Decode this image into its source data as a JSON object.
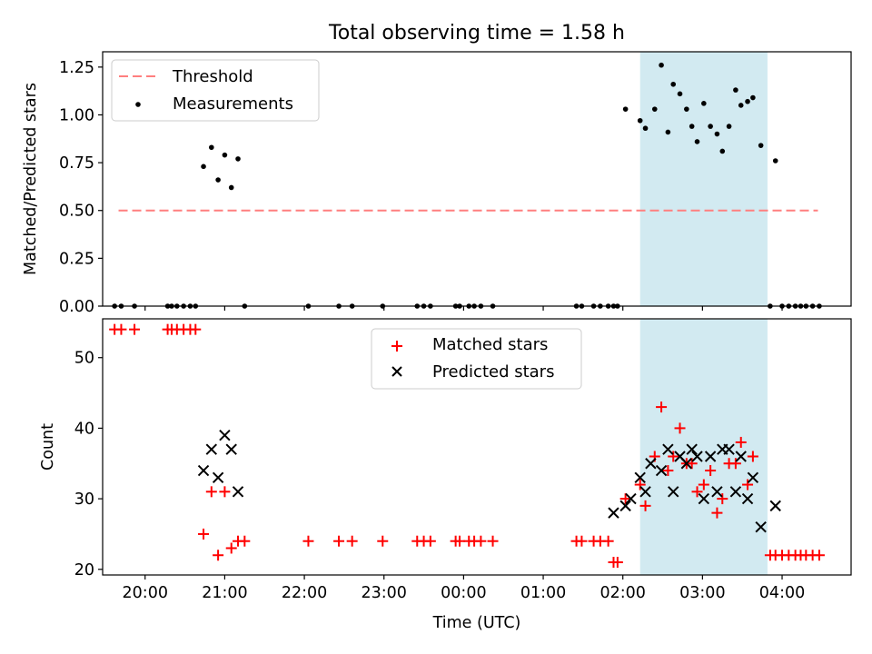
{
  "figure": {
    "title": "Total observing time = 1.58 h",
    "xlabel": "Time (UTC)"
  },
  "chart_data": [
    {
      "type": "scatter",
      "panel": "top",
      "ylabel": "Matched/Predicted stars",
      "xlim": [
        "19:28",
        "04:52"
      ],
      "ylim": [
        0,
        1.33
      ],
      "yticks": [
        0.0,
        0.25,
        0.5,
        0.75,
        1.0,
        1.25
      ],
      "ytick_labels": [
        "0.00",
        "0.25",
        "0.50",
        "0.75",
        "1.00",
        "1.25"
      ],
      "grid": false,
      "legend_position": "top-left",
      "shaded_region": {
        "start": "02:13",
        "end": "03:49",
        "color": "#add8e6"
      },
      "threshold": {
        "name": "Threshold",
        "value": 0.5,
        "x_start": "19:40",
        "x_end": "04:27",
        "color": "#ff7f7f",
        "style": "dashed"
      },
      "series": [
        {
          "name": "Measurements",
          "color": "#000000",
          "marker": "dot",
          "points": [
            [
              "19:37",
              0
            ],
            [
              "19:42",
              0
            ],
            [
              "19:52",
              0
            ],
            [
              "20:17",
              0
            ],
            [
              "20:20",
              0
            ],
            [
              "20:24",
              0
            ],
            [
              "20:29",
              0
            ],
            [
              "20:34",
              0
            ],
            [
              "20:38",
              0
            ],
            [
              "20:44",
              0.73
            ],
            [
              "20:50",
              0.83
            ],
            [
              "20:55",
              0.66
            ],
            [
              "21:00",
              0.79
            ],
            [
              "21:05",
              0.62
            ],
            [
              "21:10",
              0.77
            ],
            [
              "21:15",
              0
            ],
            [
              "22:03",
              0
            ],
            [
              "22:26",
              0
            ],
            [
              "22:36",
              0
            ],
            [
              "22:59",
              0
            ],
            [
              "23:25",
              0
            ],
            [
              "23:30",
              0
            ],
            [
              "23:35",
              0
            ],
            [
              "23:54",
              0
            ],
            [
              "23:57",
              0
            ],
            [
              "00:04",
              0
            ],
            [
              "00:08",
              0
            ],
            [
              "00:13",
              0
            ],
            [
              "00:22",
              0
            ],
            [
              "01:25",
              0
            ],
            [
              "01:29",
              0
            ],
            [
              "01:38",
              0
            ],
            [
              "01:43",
              0
            ],
            [
              "01:49",
              0
            ],
            [
              "01:53",
              0
            ],
            [
              "01:56",
              0
            ],
            [
              "02:02",
              1.03
            ],
            [
              "02:13",
              0.97
            ],
            [
              "02:17",
              0.93
            ],
            [
              "02:24",
              1.03
            ],
            [
              "02:29",
              1.26
            ],
            [
              "02:34",
              0.91
            ],
            [
              "02:38",
              1.16
            ],
            [
              "02:43",
              1.11
            ],
            [
              "02:48",
              1.03
            ],
            [
              "02:52",
              0.94
            ],
            [
              "02:56",
              0.86
            ],
            [
              "03:01",
              1.06
            ],
            [
              "03:06",
              0.94
            ],
            [
              "03:11",
              0.9
            ],
            [
              "03:15",
              0.81
            ],
            [
              "03:20",
              0.94
            ],
            [
              "03:25",
              1.13
            ],
            [
              "03:29",
              1.05
            ],
            [
              "03:34",
              1.07
            ],
            [
              "03:38",
              1.09
            ],
            [
              "03:44",
              0.84
            ],
            [
              "03:51",
              0
            ],
            [
              "03:55",
              0.76
            ],
            [
              "04:00",
              0
            ],
            [
              "04:05",
              0
            ],
            [
              "04:10",
              0
            ],
            [
              "04:14",
              0
            ],
            [
              "04:18",
              0
            ],
            [
              "04:23",
              0
            ],
            [
              "04:28",
              0
            ]
          ]
        }
      ]
    },
    {
      "type": "scatter",
      "panel": "bottom",
      "ylabel": "Count",
      "xlim": [
        "19:28",
        "04:52"
      ],
      "ylim": [
        19.2,
        55.5
      ],
      "yticks": [
        20,
        30,
        40,
        50
      ],
      "xticks": [
        "20:00",
        "21:00",
        "22:00",
        "23:00",
        "00:00",
        "01:00",
        "02:00",
        "03:00",
        "04:00"
      ],
      "grid": false,
      "legend_position": "top-center",
      "shaded_region": {
        "start": "02:13",
        "end": "03:49",
        "color": "#add8e6"
      },
      "series": [
        {
          "name": "Matched stars",
          "color": "#ff0000",
          "marker": "plus",
          "points": [
            [
              "19:37",
              54
            ],
            [
              "19:42",
              54
            ],
            [
              "19:52",
              54
            ],
            [
              "20:17",
              54
            ],
            [
              "20:20",
              54
            ],
            [
              "20:24",
              54
            ],
            [
              "20:29",
              54
            ],
            [
              "20:34",
              54
            ],
            [
              "20:38",
              54
            ],
            [
              "20:44",
              25
            ],
            [
              "20:50",
              31
            ],
            [
              "20:55",
              22
            ],
            [
              "21:00",
              31
            ],
            [
              "21:05",
              23
            ],
            [
              "21:10",
              24
            ],
            [
              "21:15",
              24
            ],
            [
              "22:03",
              24
            ],
            [
              "22:26",
              24
            ],
            [
              "22:36",
              24
            ],
            [
              "22:59",
              24
            ],
            [
              "23:25",
              24
            ],
            [
              "23:30",
              24
            ],
            [
              "23:35",
              24
            ],
            [
              "23:54",
              24
            ],
            [
              "23:57",
              24
            ],
            [
              "00:04",
              24
            ],
            [
              "00:08",
              24
            ],
            [
              "00:13",
              24
            ],
            [
              "00:22",
              24
            ],
            [
              "01:25",
              24
            ],
            [
              "01:29",
              24
            ],
            [
              "01:38",
              24
            ],
            [
              "01:43",
              24
            ],
            [
              "01:49",
              24
            ],
            [
              "01:53",
              21
            ],
            [
              "01:56",
              21
            ],
            [
              "02:02",
              30
            ],
            [
              "02:13",
              32
            ],
            [
              "02:17",
              29
            ],
            [
              "02:24",
              36
            ],
            [
              "02:29",
              43
            ],
            [
              "02:34",
              34
            ],
            [
              "02:38",
              36
            ],
            [
              "02:43",
              40
            ],
            [
              "02:48",
              35
            ],
            [
              "02:52",
              35
            ],
            [
              "02:56",
              31
            ],
            [
              "03:01",
              32
            ],
            [
              "03:06",
              34
            ],
            [
              "03:11",
              28
            ],
            [
              "03:15",
              30
            ],
            [
              "03:20",
              35
            ],
            [
              "03:25",
              35
            ],
            [
              "03:29",
              38
            ],
            [
              "03:34",
              32
            ],
            [
              "03:38",
              36
            ],
            [
              "03:51",
              22
            ],
            [
              "03:55",
              22
            ],
            [
              "04:00",
              22
            ],
            [
              "04:05",
              22
            ],
            [
              "04:10",
              22
            ],
            [
              "04:14",
              22
            ],
            [
              "04:18",
              22
            ],
            [
              "04:23",
              22
            ],
            [
              "04:28",
              22
            ]
          ]
        },
        {
          "name": "Predicted stars",
          "color": "#000000",
          "marker": "x",
          "points": [
            [
              "20:44",
              34
            ],
            [
              "20:50",
              37
            ],
            [
              "20:55",
              33
            ],
            [
              "21:00",
              39
            ],
            [
              "21:05",
              37
            ],
            [
              "21:10",
              31
            ],
            [
              "01:53",
              28
            ],
            [
              "02:02",
              29
            ],
            [
              "02:06",
              30
            ],
            [
              "02:13",
              33
            ],
            [
              "02:17",
              31
            ],
            [
              "02:21",
              35
            ],
            [
              "02:29",
              34
            ],
            [
              "02:34",
              37
            ],
            [
              "02:38",
              31
            ],
            [
              "02:43",
              36
            ],
            [
              "02:48",
              35
            ],
            [
              "02:52",
              37
            ],
            [
              "02:56",
              36
            ],
            [
              "03:01",
              30
            ],
            [
              "03:06",
              36
            ],
            [
              "03:11",
              31
            ],
            [
              "03:15",
              37
            ],
            [
              "03:20",
              37
            ],
            [
              "03:25",
              31
            ],
            [
              "03:29",
              36
            ],
            [
              "03:34",
              30
            ],
            [
              "03:38",
              33
            ],
            [
              "03:44",
              26
            ],
            [
              "03:55",
              29
            ]
          ]
        }
      ]
    }
  ]
}
